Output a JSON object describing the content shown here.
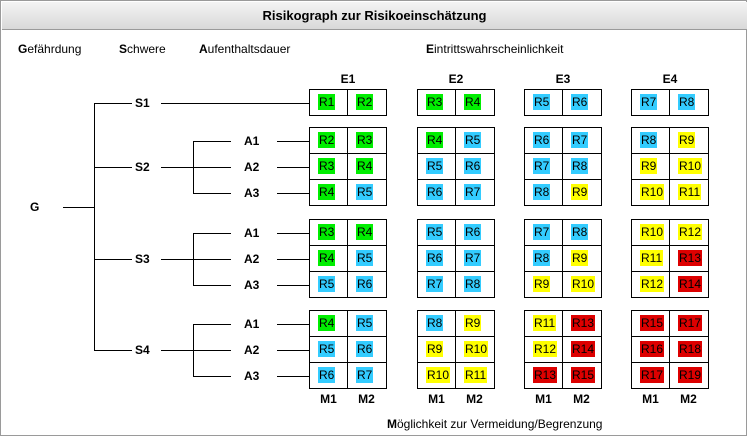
{
  "title": "Risikograph zur Risikoeinschätzung",
  "header_labels": {
    "gefaehrdung": {
      "first": "G",
      "rest": "efährdung"
    },
    "schwere": {
      "first": "S",
      "rest": "chwere"
    },
    "aufenthaltsdauer": {
      "first": "A",
      "rest": "ufenthaltsdauer"
    },
    "eintritt": {
      "first": "E",
      "rest": "intrittswahrscheinlichkeit"
    }
  },
  "footer_label": {
    "first": "M",
    "rest": "öglichkeit zur Vermeidung/Begrenzung"
  },
  "root_node": "G",
  "severity_nodes": [
    "S1",
    "S2",
    "S3",
    "S4"
  ],
  "duration_nodes": [
    "A1",
    "A2",
    "A3"
  ],
  "e_columns": [
    "E1",
    "E2",
    "E3",
    "E4"
  ],
  "m_columns": [
    "M1",
    "M2"
  ],
  "colors": {
    "green": "#00ee00",
    "cyan": "#33ccff",
    "yellow": "#ffff00",
    "red": "#dd0000"
  },
  "matrix": [
    [
      [
        [
          "R1",
          "R2"
        ]
      ],
      [
        [
          "R3",
          "R4"
        ]
      ],
      [
        [
          "R5",
          "R6"
        ]
      ],
      [
        [
          "R7",
          "R8"
        ]
      ]
    ],
    [
      [
        [
          "R2",
          "R3"
        ],
        [
          "R3",
          "R4"
        ],
        [
          "R4",
          "R5"
        ]
      ],
      [
        [
          "R4",
          "R5"
        ],
        [
          "R5",
          "R6"
        ],
        [
          "R6",
          "R7"
        ]
      ],
      [
        [
          "R6",
          "R7"
        ],
        [
          "R7",
          "R8"
        ],
        [
          "R8",
          "R9"
        ]
      ],
      [
        [
          "R8",
          "R9"
        ],
        [
          "R9",
          "R10"
        ],
        [
          "R10",
          "R11"
        ]
      ]
    ],
    [
      [
        [
          "R3",
          "R4"
        ],
        [
          "R4",
          "R5"
        ],
        [
          "R5",
          "R6"
        ]
      ],
      [
        [
          "R5",
          "R6"
        ],
        [
          "R6",
          "R7"
        ],
        [
          "R7",
          "R8"
        ]
      ],
      [
        [
          "R7",
          "R8"
        ],
        [
          "R8",
          "R9"
        ],
        [
          "R9",
          "R10"
        ]
      ],
      [
        [
          "R10",
          "R12"
        ],
        [
          "R11",
          "R13"
        ],
        [
          "R12",
          "R14"
        ]
      ]
    ],
    [
      [
        [
          "R4",
          "R5"
        ],
        [
          "R5",
          "R6"
        ],
        [
          "R6",
          "R7"
        ]
      ],
      [
        [
          "R8",
          "R9"
        ],
        [
          "R9",
          "R10"
        ],
        [
          "R10",
          "R11"
        ]
      ],
      [
        [
          "R11",
          "R13"
        ],
        [
          "R12",
          "R14"
        ],
        [
          "R13",
          "R15"
        ]
      ],
      [
        [
          "R15",
          "R17"
        ],
        [
          "R16",
          "R18"
        ],
        [
          "R17",
          "R19"
        ]
      ]
    ]
  ]
}
